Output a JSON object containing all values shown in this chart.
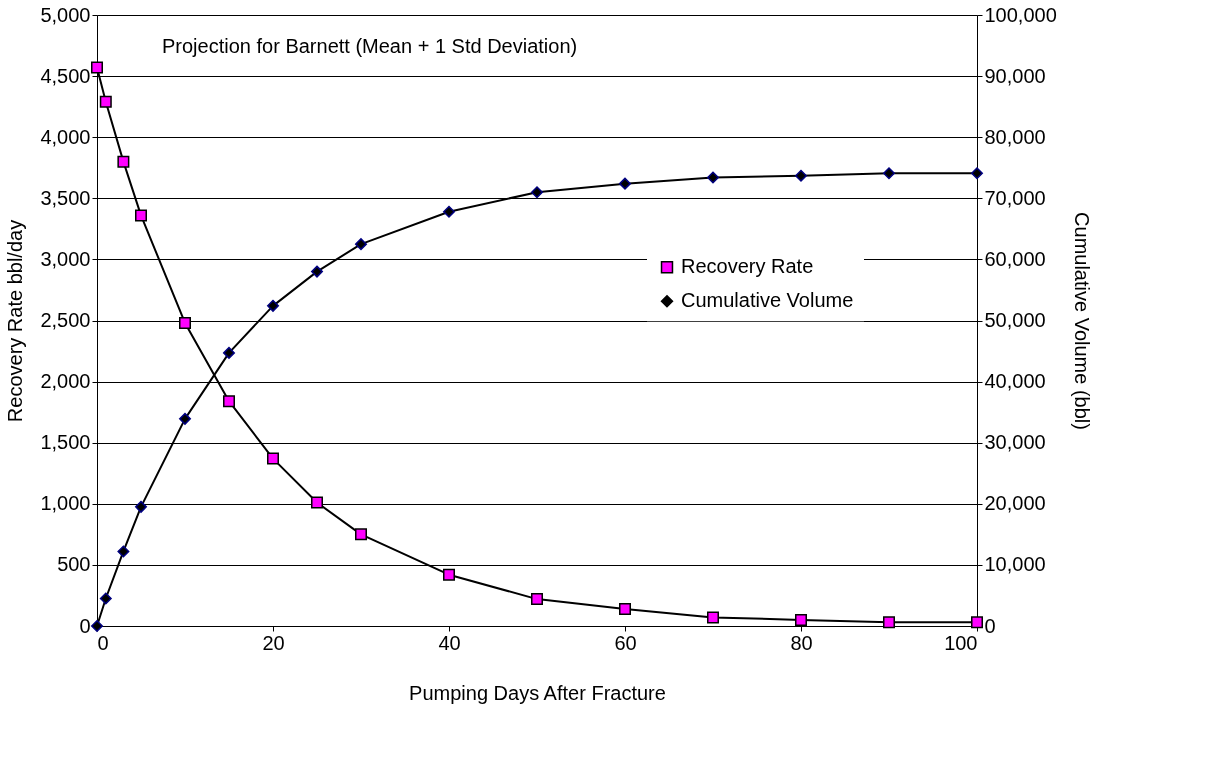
{
  "chart_data": {
    "type": "line",
    "title": "Projection for Barnett (Mean + 1 Std Deviation)",
    "xlabel": "Pumping Days After Fracture",
    "ylabel": "Recovery Rate bbl/day",
    "y2label": "Cumulative Volume (bbl)",
    "x": [
      0,
      1,
      3,
      5,
      10,
      15,
      20,
      25,
      30,
      40,
      50,
      60,
      70,
      80,
      90,
      100
    ],
    "series": [
      {
        "name": "Recovery Rate",
        "color": "#ff00ff",
        "marker": "square",
        "values": [
          4570,
          4290,
          3800,
          3360,
          2480,
          1840,
          1370,
          1010,
          750,
          420,
          220,
          140,
          70,
          50,
          30,
          30
        ]
      },
      {
        "name": "Cumulative Volume",
        "color": "#000000",
        "marker": "diamond",
        "axis": "y2",
        "values": [
          0,
          4500,
          12200,
          19500,
          33900,
          44700,
          52400,
          58000,
          62500,
          67800,
          71000,
          72400,
          73400,
          73700,
          74100,
          74100
        ]
      }
    ],
    "xlim": [
      0,
      100
    ],
    "xticks": [
      0,
      20,
      40,
      60,
      80,
      100
    ],
    "ylim": [
      0,
      5000
    ],
    "yticks": [
      0,
      500,
      {
        "value": 1000,
        "label": "1,000"
      },
      {
        "value": 1500,
        "label": "1,500"
      },
      {
        "value": 2000,
        "label": "2,000"
      },
      {
        "value": 2500,
        "label": "2,500"
      },
      {
        "value": 3000,
        "label": "3,000"
      },
      {
        "value": 3500,
        "label": "3,500"
      },
      {
        "value": 4000,
        "label": "4,000"
      },
      {
        "value": 4500,
        "label": "4,500"
      },
      {
        "value": 5000,
        "label": "5,000"
      }
    ],
    "y2lim": [
      0,
      100000
    ],
    "y2ticks": [
      0,
      {
        "value": 10000,
        "label": "10,000"
      },
      {
        "value": 20000,
        "label": "20,000"
      },
      {
        "value": 30000,
        "label": "30,000"
      },
      {
        "value": 40000,
        "label": "40,000"
      },
      {
        "value": 50000,
        "label": "50,000"
      },
      {
        "value": 60000,
        "label": "60,000"
      },
      {
        "value": 70000,
        "label": "70,000"
      },
      {
        "value": 80000,
        "label": "80,000"
      },
      {
        "value": 90000,
        "label": "90,000"
      },
      {
        "value": 100000,
        "label": "100,000"
      }
    ],
    "grid": "y",
    "legend": "right",
    "line_style": "solid"
  }
}
